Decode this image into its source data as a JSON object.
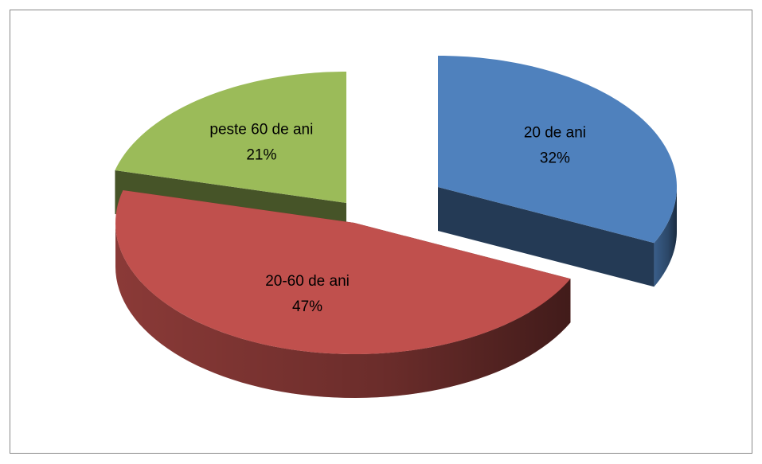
{
  "chart_data": {
    "type": "pie",
    "categories": [
      "20 de ani",
      "20-60 de ani",
      "peste 60 de ani"
    ],
    "values": [
      32,
      47,
      21
    ],
    "value_labels": [
      "32%",
      "47%",
      "21%"
    ],
    "colors": [
      "#4f81bd",
      "#c0504d",
      "#9bbb59"
    ]
  }
}
